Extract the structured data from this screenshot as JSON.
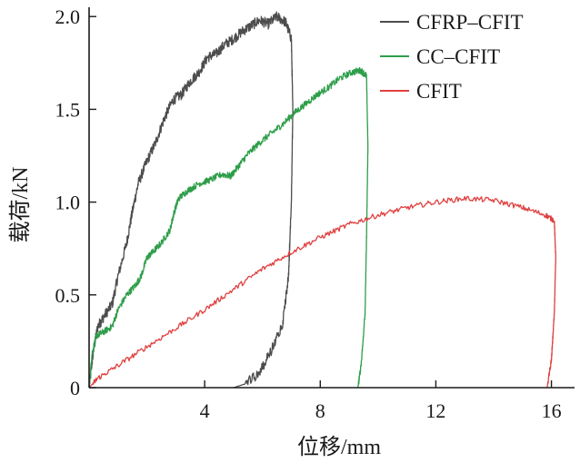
{
  "chart_data": {
    "type": "line",
    "title": "",
    "xlabel": "位移/mm",
    "ylabel": "载荷/kN",
    "xlim": [
      0,
      16.8
    ],
    "ylim": [
      0,
      2.05
    ],
    "x_ticks": [
      4,
      8,
      12,
      16
    ],
    "x_tick_labels": [
      "4",
      "8",
      "12",
      "16"
    ],
    "y_ticks": [
      0,
      0.5,
      1.0,
      1.5,
      2.0
    ],
    "y_tick_labels": [
      "0",
      "0.5",
      "1.0",
      "1.5",
      "2.0"
    ],
    "grid": false,
    "legend_position": "top-right",
    "series": [
      {
        "name": "CFRP–CFIT",
        "color": "#4d4d4d",
        "points": [
          [
            0.0,
            0.0
          ],
          [
            0.15,
            0.2
          ],
          [
            0.3,
            0.33
          ],
          [
            0.5,
            0.38
          ],
          [
            0.8,
            0.45
          ],
          [
            1.0,
            0.6
          ],
          [
            1.3,
            0.78
          ],
          [
            1.5,
            0.95
          ],
          [
            1.7,
            1.1
          ],
          [
            2.0,
            1.22
          ],
          [
            2.3,
            1.32
          ],
          [
            2.6,
            1.45
          ],
          [
            2.9,
            1.55
          ],
          [
            3.2,
            1.58
          ],
          [
            3.5,
            1.65
          ],
          [
            3.8,
            1.7
          ],
          [
            4.1,
            1.78
          ],
          [
            4.4,
            1.8
          ],
          [
            4.7,
            1.85
          ],
          [
            5.0,
            1.88
          ],
          [
            5.3,
            1.92
          ],
          [
            5.6,
            1.95
          ],
          [
            5.9,
            1.98
          ],
          [
            6.2,
            1.96
          ],
          [
            6.5,
            2.0
          ],
          [
            6.8,
            1.97
          ],
          [
            7.0,
            1.88
          ],
          [
            7.05,
            1.5
          ],
          [
            7.0,
            1.0
          ],
          [
            6.9,
            0.6
          ],
          [
            6.7,
            0.35
          ],
          [
            6.3,
            0.2
          ],
          [
            5.9,
            0.08
          ],
          [
            5.4,
            0.02
          ],
          [
            5.0,
            0.0
          ]
        ]
      },
      {
        "name": "CC–CFIT",
        "color": "#2e9e4a",
        "points": [
          [
            0.0,
            0.0
          ],
          [
            0.1,
            0.18
          ],
          [
            0.25,
            0.28
          ],
          [
            0.5,
            0.3
          ],
          [
            0.8,
            0.33
          ],
          [
            1.0,
            0.42
          ],
          [
            1.3,
            0.5
          ],
          [
            1.6,
            0.55
          ],
          [
            1.8,
            0.6
          ],
          [
            2.0,
            0.7
          ],
          [
            2.2,
            0.73
          ],
          [
            2.5,
            0.78
          ],
          [
            2.8,
            0.85
          ],
          [
            2.95,
            0.95
          ],
          [
            3.1,
            1.02
          ],
          [
            3.4,
            1.06
          ],
          [
            3.8,
            1.1
          ],
          [
            4.2,
            1.12
          ],
          [
            4.6,
            1.15
          ],
          [
            4.9,
            1.14
          ],
          [
            5.2,
            1.2
          ],
          [
            5.5,
            1.26
          ],
          [
            5.9,
            1.32
          ],
          [
            6.3,
            1.37
          ],
          [
            6.7,
            1.42
          ],
          [
            7.1,
            1.48
          ],
          [
            7.5,
            1.53
          ],
          [
            7.9,
            1.58
          ],
          [
            8.3,
            1.62
          ],
          [
            8.7,
            1.67
          ],
          [
            9.1,
            1.7
          ],
          [
            9.4,
            1.71
          ],
          [
            9.6,
            1.68
          ],
          [
            9.65,
            1.3
          ],
          [
            9.6,
            0.8
          ],
          [
            9.55,
            0.4
          ],
          [
            9.4,
            0.1
          ],
          [
            9.3,
            0.0
          ]
        ]
      },
      {
        "name": "CFIT",
        "color": "#e04040",
        "points": [
          [
            0.0,
            0.0
          ],
          [
            0.3,
            0.05
          ],
          [
            1.0,
            0.12
          ],
          [
            2.0,
            0.22
          ],
          [
            3.0,
            0.32
          ],
          [
            4.0,
            0.42
          ],
          [
            5.0,
            0.53
          ],
          [
            6.0,
            0.64
          ],
          [
            7.0,
            0.73
          ],
          [
            8.0,
            0.81
          ],
          [
            9.0,
            0.88
          ],
          [
            10.0,
            0.93
          ],
          [
            11.0,
            0.97
          ],
          [
            12.0,
            1.0
          ],
          [
            13.0,
            1.02
          ],
          [
            14.0,
            1.01
          ],
          [
            15.0,
            0.97
          ],
          [
            15.8,
            0.93
          ],
          [
            16.1,
            0.9
          ],
          [
            16.15,
            0.7
          ],
          [
            16.1,
            0.4
          ],
          [
            16.0,
            0.15
          ],
          [
            15.85,
            0.0
          ]
        ]
      }
    ]
  }
}
